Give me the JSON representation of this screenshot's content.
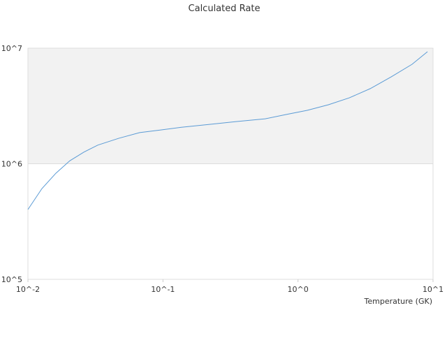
{
  "chart_data": {
    "type": "line",
    "title": "Calculated Rate",
    "x_label": "Temperature (GK)",
    "log_x": true,
    "log_y": true,
    "alternate_bands": true,
    "band_color": "#f2f2f2",
    "x": [
      0.01,
      0.0127,
      0.0161,
      0.0204,
      0.0259,
      0.0329,
      0.047,
      0.0672,
      0.0962,
      0.137,
      0.221,
      0.353,
      0.572,
      0.821,
      1.17,
      1.68,
      2.4,
      3.43,
      4.9,
      7.0,
      9.1
    ],
    "series": [
      {
        "color": "#5b9bd5",
        "values": [
          402000,
          610000,
          828000,
          1060000,
          1260000,
          1450000,
          1660000,
          1860000,
          1960000,
          2070000,
          2190000,
          2320000,
          2450000,
          2670000,
          2900000,
          3240000,
          3720000,
          4470000,
          5650000,
          7260000,
          9330000
        ]
      }
    ],
    "xlim": [
      0.01,
      10
    ],
    "xticks": [
      {
        "value": 0.01,
        "label": "10^-2"
      },
      {
        "value": 0.1,
        "label": "10^-1"
      },
      {
        "value": 1,
        "label": "10^0"
      },
      {
        "value": 10,
        "label": "10^1"
      }
    ],
    "ylim": [
      100000,
      10000000
    ],
    "yticks": [
      {
        "value": 100000,
        "label": "10^5"
      },
      {
        "value": 1000000,
        "label": "10^6"
      },
      {
        "value": 10000000,
        "label": "10^7"
      }
    ]
  }
}
